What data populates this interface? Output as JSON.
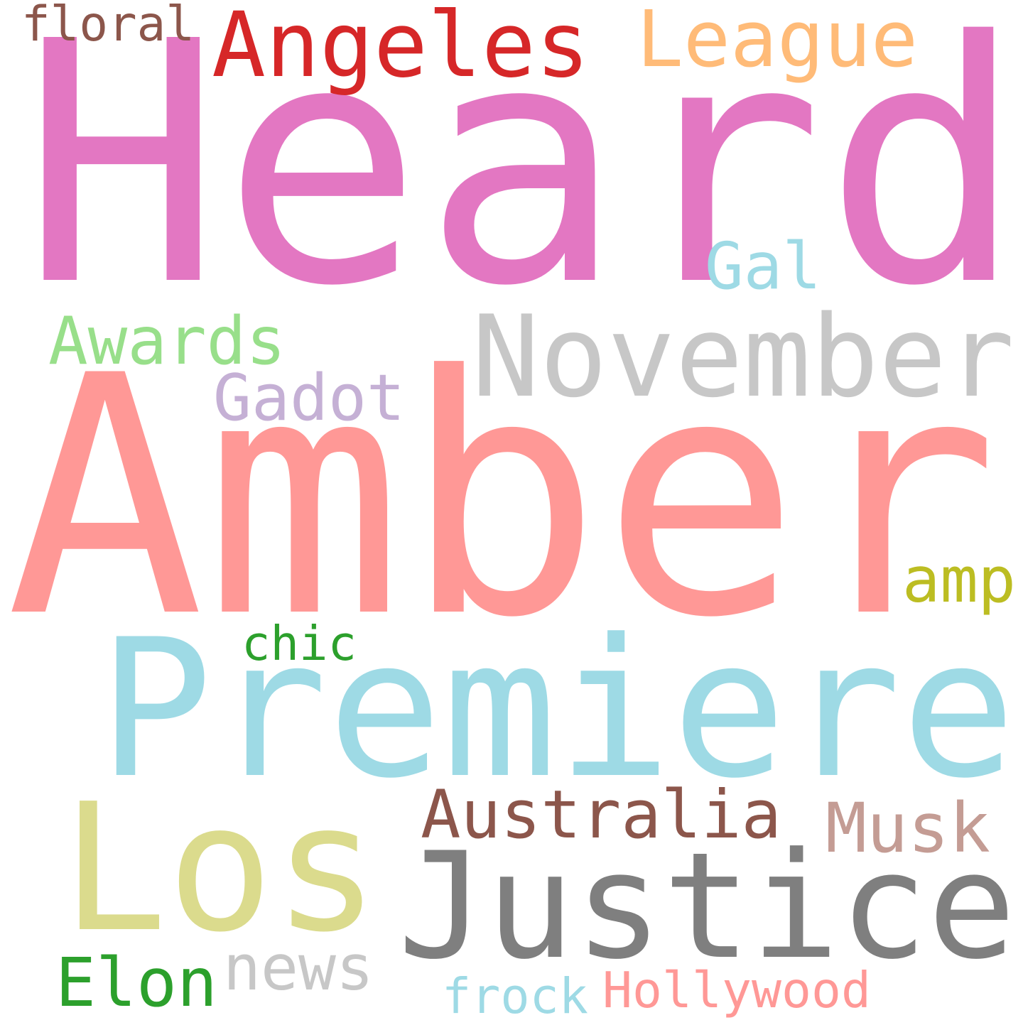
{
  "background": "#ffffff",
  "words": [
    {
      "id": "heard",
      "text": "Heard",
      "color": "#e377c2"
    },
    {
      "id": "amber",
      "text": "Amber",
      "color": "#ff9896"
    },
    {
      "id": "premiere",
      "text": "Premiere",
      "color": "#9edae5"
    },
    {
      "id": "los",
      "text": "Los",
      "color": "#dbdb8d"
    },
    {
      "id": "justice",
      "text": "Justice",
      "color": "#7f7f7f"
    },
    {
      "id": "november",
      "text": "November",
      "color": "#c7c7c7"
    },
    {
      "id": "angeles",
      "text": "Angeles",
      "color": "#d62728"
    },
    {
      "id": "league",
      "text": "League",
      "color": "#ffbb78"
    },
    {
      "id": "australia",
      "text": "Australia",
      "color": "#8c564b"
    },
    {
      "id": "elon",
      "text": "Elon",
      "color": "#2ca02c"
    },
    {
      "id": "awards",
      "text": "Awards",
      "color": "#98df8a"
    },
    {
      "id": "gadot",
      "text": "Gadot",
      "color": "#c5b0d5"
    },
    {
      "id": "musk",
      "text": "Musk",
      "color": "#c49c94"
    },
    {
      "id": "gal",
      "text": "Gal",
      "color": "#9edae5"
    },
    {
      "id": "amp",
      "text": "amp",
      "color": "#bcbd22"
    },
    {
      "id": "news",
      "text": "news",
      "color": "#c7c7c7"
    },
    {
      "id": "hollywood",
      "text": "Hollywood",
      "color": "#ff9896"
    },
    {
      "id": "chic",
      "text": "chic",
      "color": "#2ca02c"
    },
    {
      "id": "floral",
      "text": "floral",
      "color": "#8c564b"
    },
    {
      "id": "frock",
      "text": "frock",
      "color": "#9edae5"
    }
  ]
}
